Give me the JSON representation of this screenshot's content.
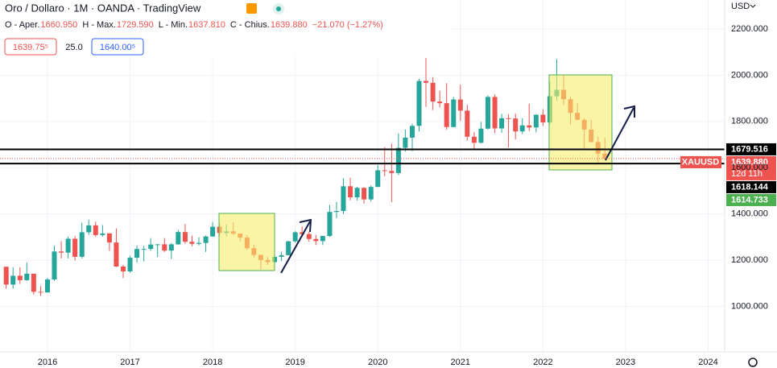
{
  "chart_data": {
    "type": "candlestick",
    "title": "Oro / Dollaro · 1M · OANDA · TradingView",
    "ohlc_legend": [
      [
        "O - Aper.",
        "1660.950"
      ],
      [
        "H - Max.",
        "1729.590"
      ],
      [
        "L - Min.",
        "1637.810"
      ],
      [
        "C - Chius.",
        "1639.880"
      ]
    ],
    "change": "−21.070 (−1.27%)",
    "sell_price": "1639.75⁵",
    "spread": "25.0",
    "buy_price": "1640.00⁵",
    "currency": "USD",
    "up_color": "#26a69a",
    "down_color": "#ef5350",
    "x": [
      2015.5,
      2015.583,
      2015.667,
      2015.75,
      2015.833,
      2015.917,
      2016,
      2016.083,
      2016.167,
      2016.25,
      2016.333,
      2016.417,
      2016.5,
      2016.583,
      2016.667,
      2016.75,
      2016.833,
      2016.917,
      2017,
      2017.083,
      2017.167,
      2017.25,
      2017.333,
      2017.417,
      2017.5,
      2017.583,
      2017.667,
      2017.75,
      2017.833,
      2017.917,
      2018,
      2018.083,
      2018.167,
      2018.25,
      2018.333,
      2018.417,
      2018.5,
      2018.583,
      2018.667,
      2018.75,
      2018.833,
      2018.917,
      2019,
      2019.083,
      2019.167,
      2019.25,
      2019.333,
      2019.417,
      2019.5,
      2019.583,
      2019.667,
      2019.75,
      2019.833,
      2019.917,
      2020,
      2020.083,
      2020.167,
      2020.25,
      2020.333,
      2020.417,
      2020.5,
      2020.583,
      2020.667,
      2020.75,
      2020.833,
      2020.917,
      2021,
      2021.083,
      2021.167,
      2021.25,
      2021.333,
      2021.417,
      2021.5,
      2021.583,
      2021.667,
      2021.75,
      2021.833,
      2021.917,
      2022,
      2022.083,
      2022.167,
      2022.25,
      2022.333,
      2022.417,
      2022.5,
      2022.583,
      2022.667,
      2022.75
    ],
    "open": [
      1172,
      1095,
      1133,
      1114,
      1142,
      1064,
      1061,
      1117,
      1238,
      1233,
      1293,
      1215,
      1321,
      1351,
      1309,
      1316,
      1277,
      1173,
      1152,
      1211,
      1249,
      1249,
      1268,
      1269,
      1242,
      1269,
      1322,
      1280,
      1271,
      1275,
      1303,
      1345,
      1318,
      1325,
      1315,
      1298,
      1252,
      1223,
      1201,
      1192,
      1215,
      1222,
      1282,
      1321,
      1313,
      1292,
      1283,
      1305,
      1409,
      1413,
      1520,
      1472,
      1513,
      1463,
      1517,
      1589,
      1586,
      1577,
      1686,
      1730,
      1781,
      1975,
      1967,
      1886,
      1879,
      1776,
      1895,
      1847,
      1734,
      1708,
      1769,
      1906,
      1770,
      1814,
      1813,
      1757,
      1783,
      1774,
      1829,
      1796,
      1909,
      1937,
      1896,
      1837,
      1807,
      1765,
      1711,
      1660.95
    ],
    "high": [
      1172,
      1170,
      1170,
      1191,
      1142,
      1088,
      1124,
      1263,
      1283,
      1303,
      1304,
      1362,
      1375,
      1367,
      1352,
      1318,
      1338,
      1180,
      1220,
      1264,
      1262,
      1296,
      1270,
      1296,
      1275,
      1331,
      1357,
      1306,
      1299,
      1307,
      1366,
      1361,
      1356,
      1365,
      1316,
      1309,
      1266,
      1224,
      1214,
      1243,
      1237,
      1284,
      1326,
      1346,
      1324,
      1310,
      1306,
      1439,
      1452,
      1555,
      1557,
      1518,
      1516,
      1523,
      1611,
      1689,
      1704,
      1748,
      1765,
      1789,
      1984,
      2075,
      1992,
      1933,
      1966,
      1906,
      1959,
      1872,
      1755,
      1798,
      1913,
      1917,
      1833,
      1832,
      1834,
      1814,
      1877,
      1831,
      1853,
      1974,
      2070,
      1998,
      1909,
      1879,
      1814,
      1807,
      1735,
      1729.59
    ],
    "low": [
      1077,
      1077,
      1098,
      1111,
      1052,
      1046,
      1060,
      1111,
      1208,
      1208,
      1199,
      1208,
      1310,
      1302,
      1302,
      1241,
      1171,
      1123,
      1146,
      1190,
      1195,
      1241,
      1214,
      1236,
      1205,
      1267,
      1271,
      1261,
      1264,
      1236,
      1302,
      1307,
      1303,
      1309,
      1282,
      1245,
      1211,
      1160,
      1180,
      1183,
      1196,
      1221,
      1276,
      1302,
      1280,
      1266,
      1266,
      1301,
      1382,
      1400,
      1459,
      1458,
      1445,
      1454,
      1517,
      1563,
      1451,
      1568,
      1670,
      1671,
      1757,
      1863,
      1849,
      1860,
      1764,
      1775,
      1802,
      1717,
      1677,
      1705,
      1765,
      1750,
      1751,
      1688,
      1722,
      1746,
      1759,
      1753,
      1780,
      1786,
      1890,
      1872,
      1787,
      1805,
      1681,
      1709,
      1615,
      1637.81
    ],
    "close": [
      1095,
      1133,
      1114,
      1142,
      1064,
      1061,
      1117,
      1238,
      1233,
      1293,
      1215,
      1321,
      1351,
      1309,
      1316,
      1277,
      1173,
      1152,
      1211,
      1249,
      1249,
      1268,
      1269,
      1242,
      1269,
      1322,
      1280,
      1271,
      1275,
      1303,
      1345,
      1318,
      1325,
      1315,
      1298,
      1252,
      1223,
      1201,
      1192,
      1215,
      1222,
      1282,
      1321,
      1313,
      1292,
      1283,
      1305,
      1409,
      1413,
      1520,
      1472,
      1513,
      1463,
      1517,
      1589,
      1586,
      1577,
      1686,
      1730,
      1781,
      1975,
      1967,
      1886,
      1879,
      1776,
      1895,
      1847,
      1734,
      1708,
      1769,
      1906,
      1770,
      1814,
      1813,
      1757,
      1783,
      1774,
      1829,
      1796,
      1909,
      1937,
      1896,
      1837,
      1807,
      1765,
      1711,
      1660.95,
      1639.88
    ],
    "xlim": [
      2015.425,
      2024.2
    ],
    "xticks": [
      2016,
      2017,
      2018,
      2019,
      2020,
      2021,
      2022,
      2023,
      2024
    ],
    "ylim": [
      804,
      2325
    ],
    "yticks": [
      {
        "value": 1000,
        "label": "1000.000"
      },
      {
        "value": 1200,
        "label": "1200.000"
      },
      {
        "value": 1400,
        "label": "1400.000"
      },
      {
        "value": 1600,
        "label": "1600.000"
      },
      {
        "value": 1800,
        "label": "1800.000"
      },
      {
        "value": 2000,
        "label": "2000.000"
      },
      {
        "value": 2200,
        "label": "2200.000"
      }
    ],
    "grid": true,
    "hlines": [
      {
        "value": 1679.516,
        "label": "1679.516"
      },
      {
        "value": 1618.144,
        "label": "1618.144"
      }
    ],
    "symbol": "XAUUSD",
    "last_price": {
      "value": 1639.88,
      "label": "1639.880"
    },
    "countdown": "12d 11h",
    "extra_price": {
      "value": 1614.733,
      "label": "1614.733"
    }
  }
}
